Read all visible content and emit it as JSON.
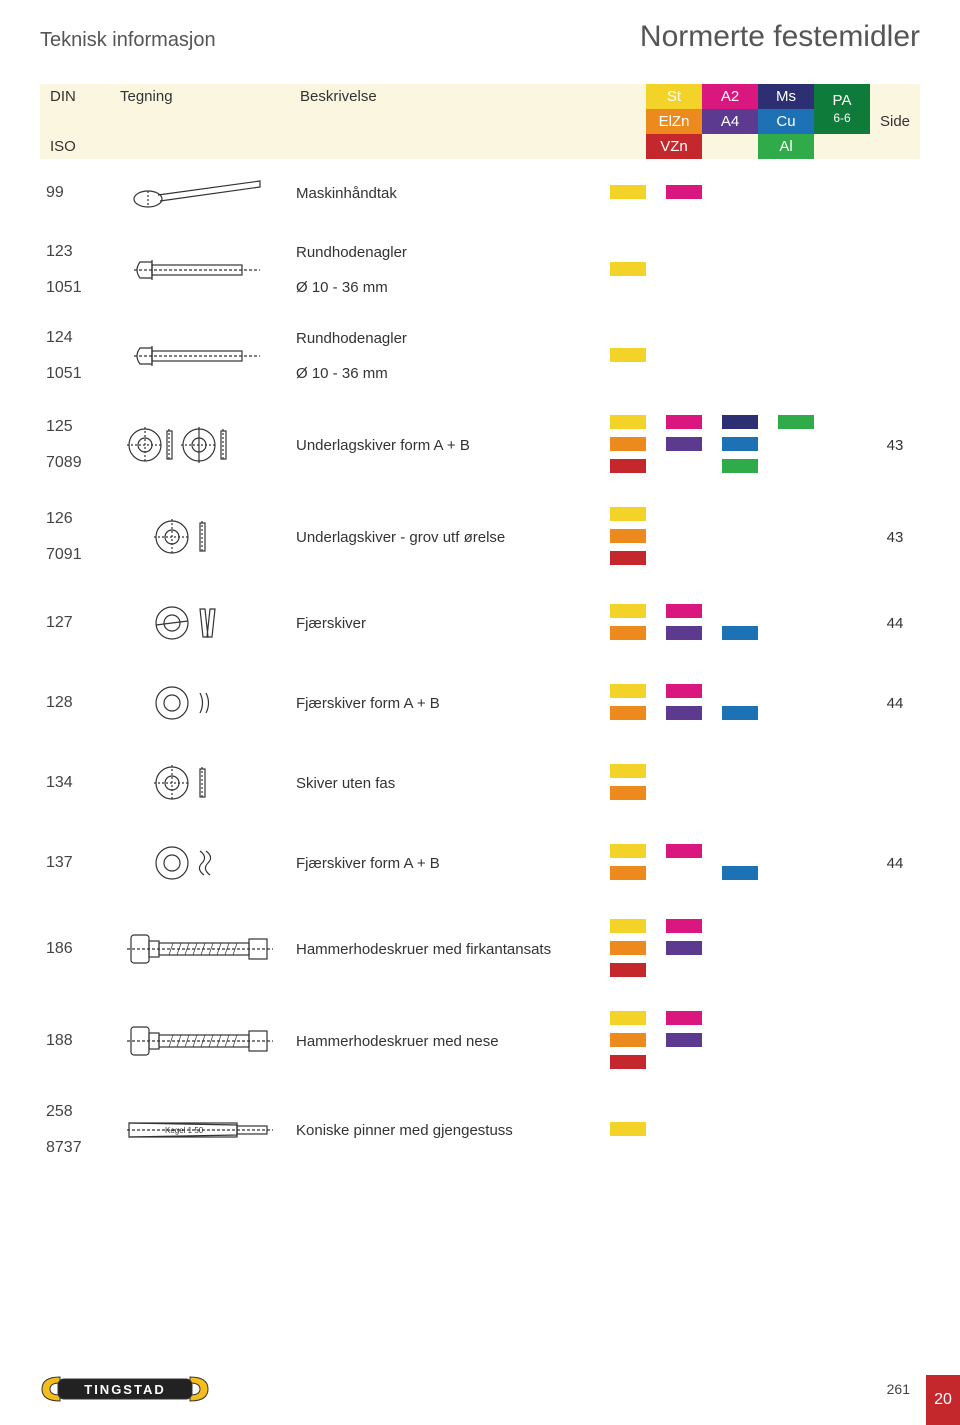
{
  "titles": {
    "left": "Teknisk informasjon",
    "right": "Normerte festemidler"
  },
  "colors": {
    "cream": "#fbf6df",
    "yellow": "#f3d327",
    "magenta": "#d9177e",
    "orange": "#ec8a1e",
    "purple": "#5b3a8f",
    "navy": "#2c3073",
    "green_dk": "#0f7b3a",
    "green": "#2fab4a",
    "red": "#c4282d",
    "blue": "#1d72b6",
    "pa_green": "#0f7b3a"
  },
  "header": {
    "din": "DIN",
    "iso": "ISO",
    "tegning": "Tegning",
    "beskrivelse": "Beskrivelse",
    "side": "Side",
    "cells": [
      {
        "bg": "#f3d327",
        "text": "St"
      },
      {
        "bg": "#d9177e",
        "text": "A2"
      },
      {
        "bg": "#2c3073",
        "text": "Ms"
      },
      {
        "bg": "#0f7b3a",
        "text": "PA",
        "sub": "6-6",
        "rowspan": 2
      },
      {
        "bg": "#ec8a1e",
        "text": "ElZn"
      },
      {
        "bg": "#5b3a8f",
        "text": "A4"
      },
      {
        "bg": "#1d72b6",
        "text": "Cu"
      },
      {
        "bg": "#c4282d",
        "text": "VZn"
      },
      {
        "bg": "#2fab4a",
        "text": "Al"
      }
    ]
  },
  "rows": [
    {
      "din": "99",
      "iso": "",
      "desc": "Maskinhåndtak",
      "sub": "",
      "side": "",
      "icon": "handle",
      "sw": [
        [
          "#f3d327",
          "#d9177e",
          "",
          ""
        ]
      ]
    },
    {
      "din": "123",
      "iso": "1051",
      "desc": "Rundhodenagler",
      "sub": "Ø 10 - 36 mm",
      "side": "",
      "icon": "rivet",
      "sw": [
        [
          "#f3d327",
          "",
          "",
          ""
        ]
      ]
    },
    {
      "din": "124",
      "iso": "1051",
      "desc": "Rundhodenagler",
      "sub": "Ø 10 - 36 mm",
      "side": "",
      "icon": "rivet",
      "sw": [
        [
          "#f3d327",
          "",
          "",
          ""
        ]
      ]
    },
    {
      "din": "125",
      "iso": "7089",
      "desc": "Underlagskiver  form A + B",
      "sub": "",
      "side": "43",
      "icon": "washer2",
      "sw": [
        [
          "#f3d327",
          "#d9177e",
          "#2c3073",
          "#2fab4a"
        ],
        [
          "#ec8a1e",
          "#5b3a8f",
          "#1d72b6",
          ""
        ],
        [
          "#c4282d",
          "",
          "#2fab4a",
          ""
        ]
      ]
    },
    {
      "din": "126",
      "iso": "7091",
      "desc": "Underlagskiver - grov utf ørelse",
      "sub": "",
      "side": "43",
      "icon": "washer1",
      "sw": [
        [
          "#f3d327",
          "",
          "",
          ""
        ],
        [
          "#ec8a1e",
          "",
          "",
          ""
        ],
        [
          "#c4282d",
          "",
          "",
          ""
        ]
      ]
    },
    {
      "din": "127",
      "iso": "",
      "desc": "Fjærskiver",
      "sub": "",
      "side": "44",
      "icon": "spring1",
      "sw": [
        [
          "#f3d327",
          "#d9177e",
          "",
          ""
        ],
        [
          "#ec8a1e",
          "#5b3a8f",
          "#1d72b6",
          ""
        ]
      ]
    },
    {
      "din": "128",
      "iso": "",
      "desc": "Fjærskiver form A + B",
      "sub": "",
      "side": "44",
      "icon": "spring2",
      "sw": [
        [
          "#f3d327",
          "#d9177e",
          "",
          ""
        ],
        [
          "#ec8a1e",
          "#5b3a8f",
          "#1d72b6",
          ""
        ]
      ]
    },
    {
      "din": "134",
      "iso": "",
      "desc": "Skiver uten fas",
      "sub": "",
      "side": "",
      "icon": "washer1",
      "sw": [
        [
          "#f3d327",
          "",
          "",
          ""
        ],
        [
          "#ec8a1e",
          "",
          "",
          ""
        ]
      ]
    },
    {
      "din": "137",
      "iso": "",
      "desc": "Fjærskiver form A + B",
      "sub": "",
      "side": "44",
      "icon": "spring3",
      "sw": [
        [
          "#f3d327",
          "#d9177e",
          "",
          ""
        ],
        [
          "#ec8a1e",
          "",
          "#1d72b6",
          ""
        ]
      ]
    },
    {
      "din": "186",
      "iso": "",
      "desc": "Hammerhodeskruer med firkantansats",
      "sub": "",
      "side": "",
      "icon": "hammer",
      "sw": [
        [
          "#f3d327",
          "#d9177e",
          "",
          ""
        ],
        [
          "#ec8a1e",
          "#5b3a8f",
          "",
          ""
        ],
        [
          "#c4282d",
          "",
          "",
          ""
        ]
      ]
    },
    {
      "din": "188",
      "iso": "",
      "desc": "Hammerhodeskruer med nese",
      "sub": "",
      "side": "",
      "icon": "hammer",
      "sw": [
        [
          "#f3d327",
          "#d9177e",
          "",
          ""
        ],
        [
          "#ec8a1e",
          "#5b3a8f",
          "",
          ""
        ],
        [
          "#c4282d",
          "",
          "",
          ""
        ]
      ]
    },
    {
      "din": "258",
      "iso": "8737",
      "desc": "Koniske pinner med gjengestuss",
      "sub": "",
      "side": "",
      "icon": "taper",
      "sw": [
        [
          "#f3d327",
          "",
          "",
          ""
        ]
      ]
    }
  ],
  "footer": {
    "brand": "TINGSTAD",
    "page_number": "261",
    "tab": "20"
  }
}
